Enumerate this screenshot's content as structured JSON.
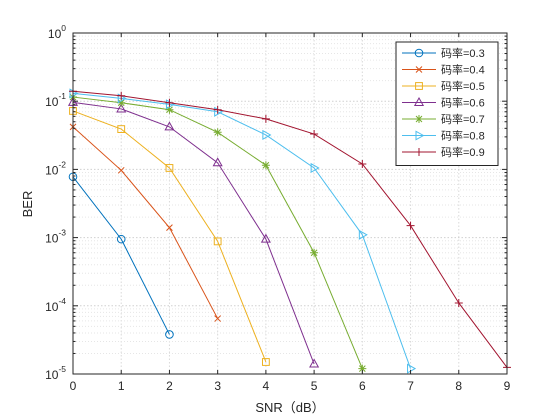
{
  "chart_data": {
    "type": "line",
    "title": "",
    "xlabel": "SNR（dB）",
    "ylabel": "BER",
    "yscale": "log",
    "xlim": [
      0,
      9
    ],
    "ylim": [
      1e-05,
      1
    ],
    "x_ticks": [
      0,
      1,
      2,
      3,
      4,
      5,
      6,
      7,
      8,
      9
    ],
    "y_ticks": [
      {
        "base": "10",
        "exp": "0"
      },
      {
        "base": "10",
        "exp": "-1"
      },
      {
        "base": "10",
        "exp": "-2"
      },
      {
        "base": "10",
        "exp": "-3"
      },
      {
        "base": "10",
        "exp": "-4"
      },
      {
        "base": "10",
        "exp": "-5"
      }
    ],
    "grid": true,
    "legend_position": "top-right",
    "series": [
      {
        "name": "码率=0.3",
        "color": "#0072BD",
        "marker": "circle",
        "x": [
          0,
          1,
          2
        ],
        "y": [
          0.0078,
          0.00095,
          3.8e-05
        ]
      },
      {
        "name": "码率=0.4",
        "color": "#D95319",
        "marker": "x",
        "x": [
          0,
          1,
          2,
          3
        ],
        "y": [
          0.042,
          0.0097,
          0.0014,
          6.5e-05
        ]
      },
      {
        "name": "码率=0.5",
        "color": "#EDB120",
        "marker": "square",
        "x": [
          0,
          1,
          2,
          3,
          4
        ],
        "y": [
          0.072,
          0.039,
          0.0105,
          0.00088,
          1.5e-05
        ]
      },
      {
        "name": "码率=0.6",
        "color": "#7E2F8E",
        "marker": "triangle-up",
        "x": [
          0,
          1,
          2,
          3,
          4,
          5
        ],
        "y": [
          0.096,
          0.077,
          0.042,
          0.0125,
          0.00095,
          1.4e-05
        ]
      },
      {
        "name": "码率=0.7",
        "color": "#77AC30",
        "marker": "asterisk",
        "x": [
          0,
          1,
          2,
          3,
          4,
          5,
          6
        ],
        "y": [
          0.115,
          0.095,
          0.075,
          0.035,
          0.0115,
          0.0006,
          1.2e-05
        ]
      },
      {
        "name": "码率=0.8",
        "color": "#4DBEEE",
        "marker": "triangle-right",
        "x": [
          0,
          1,
          2,
          3,
          4,
          5,
          6,
          7
        ],
        "y": [
          0.13,
          0.11,
          0.09,
          0.07,
          0.032,
          0.0105,
          0.0011,
          1.2e-05
        ]
      },
      {
        "name": "码率=0.9",
        "color": "#A2142F",
        "marker": "plus",
        "x": [
          0,
          1,
          2,
          3,
          4,
          5,
          6,
          7,
          8,
          9
        ],
        "y": [
          0.14,
          0.12,
          0.095,
          0.075,
          0.055,
          0.033,
          0.012,
          0.0015,
          0.00011,
          1.25e-05
        ]
      }
    ]
  }
}
